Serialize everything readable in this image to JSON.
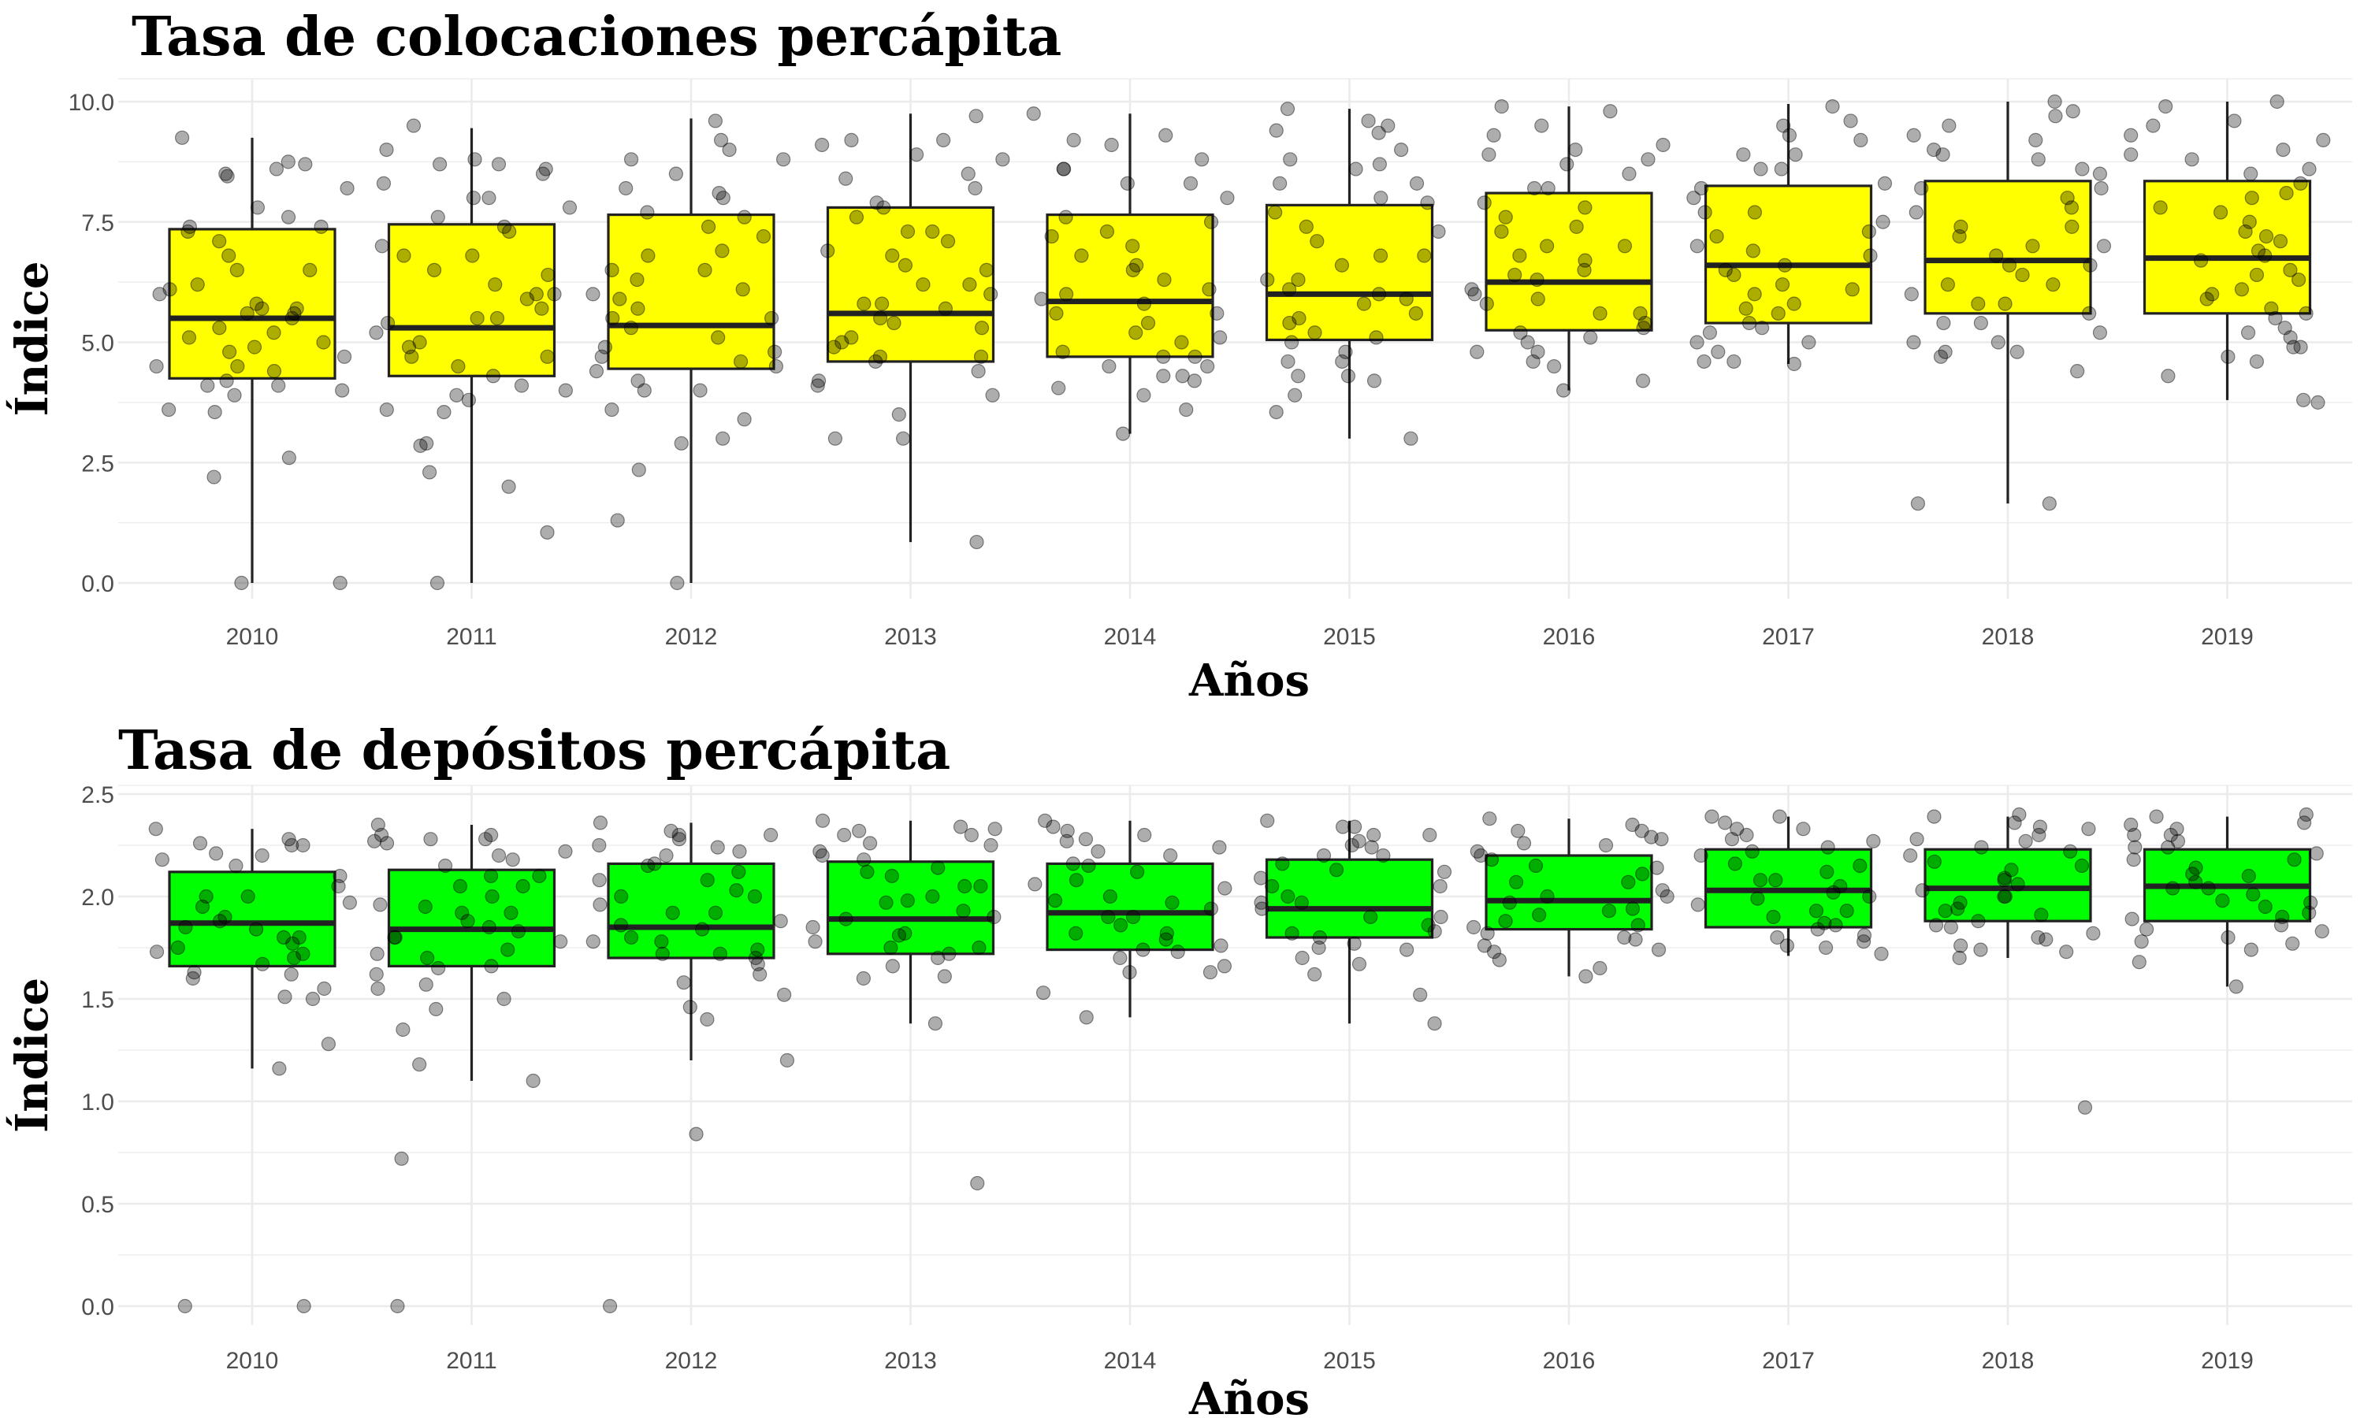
{
  "chart_data": [
    {
      "type": "boxplot",
      "title": "Tasa de colocaciones percápita",
      "xlabel": "Años",
      "ylabel": "Índice",
      "ylim": [
        0,
        10
      ],
      "y_ticks": [
        "0.0",
        "2.5",
        "5.0",
        "7.5",
        "10.0"
      ],
      "y_tick_values": [
        0,
        2.5,
        5,
        7.5,
        10
      ],
      "categories": [
        "2010",
        "2011",
        "2012",
        "2013",
        "2014",
        "2015",
        "2016",
        "2017",
        "2018",
        "2019"
      ],
      "box_color": "#ffff00",
      "point_color": "#000000",
      "point_opacity": 0.32,
      "boxes": [
        {
          "q1": 4.25,
          "median": 5.5,
          "q3": 7.35,
          "whisker_low": 0.0,
          "whisker_high": 9.25
        },
        {
          "q1": 4.3,
          "median": 5.3,
          "q3": 7.45,
          "whisker_low": 0.0,
          "whisker_high": 9.45
        },
        {
          "q1": 4.45,
          "median": 5.35,
          "q3": 7.65,
          "whisker_low": 0.0,
          "whisker_high": 9.65
        },
        {
          "q1": 4.6,
          "median": 5.6,
          "q3": 7.8,
          "whisker_low": 0.85,
          "whisker_high": 9.75
        },
        {
          "q1": 4.7,
          "median": 5.85,
          "q3": 7.65,
          "whisker_low": 3.1,
          "whisker_high": 9.75
        },
        {
          "q1": 5.05,
          "median": 6.0,
          "q3": 7.85,
          "whisker_low": 3.0,
          "whisker_high": 9.85
        },
        {
          "q1": 5.25,
          "median": 6.25,
          "q3": 8.1,
          "whisker_low": 4.0,
          "whisker_high": 9.9
        },
        {
          "q1": 5.4,
          "median": 6.6,
          "q3": 8.25,
          "whisker_low": 4.55,
          "whisker_high": 9.95
        },
        {
          "q1": 5.6,
          "median": 6.7,
          "q3": 8.35,
          "whisker_low": 1.65,
          "whisker_high": 10.0
        },
        {
          "q1": 5.6,
          "median": 6.75,
          "q3": 8.35,
          "whisker_low": 3.8,
          "whisker_high": 10.0
        }
      ],
      "points": [
        [
          8.6,
          8.2,
          7.8,
          7.6,
          7.4,
          7.1,
          6.8,
          6.5,
          6.2,
          6.0,
          5.8,
          5.7,
          5.6,
          5.5,
          5.3,
          5.2,
          5.0,
          4.9,
          4.7,
          4.5,
          4.4,
          4.2,
          4.1,
          4.0,
          3.9,
          3.6,
          3.55,
          2.6,
          2.2,
          0.0,
          0.0,
          9.25,
          8.75,
          8.7,
          8.5,
          8.45,
          7.4,
          7.3,
          6.5,
          6.1,
          5.7,
          5.6,
          5.1,
          4.8,
          4.5,
          4.1
        ],
        [
          8.7,
          8.7,
          8.5,
          8.3,
          8.0,
          7.8,
          7.6,
          7.3,
          7.0,
          6.8,
          6.5,
          6.4,
          6.2,
          6.0,
          5.9,
          5.7,
          5.5,
          5.4,
          5.2,
          5.0,
          4.9,
          4.7,
          4.5,
          4.3,
          4.1,
          3.9,
          3.8,
          3.6,
          2.9,
          2.3,
          2.0,
          1.05,
          0.0,
          9.5,
          9.0,
          8.8,
          8.6,
          8.0,
          7.4,
          6.8,
          6.0,
          5.5,
          4.7,
          4.0,
          3.55,
          2.85
        ],
        [
          9.2,
          9.0,
          8.8,
          8.5,
          8.2,
          8.0,
          7.7,
          7.4,
          7.2,
          6.8,
          6.5,
          6.3,
          6.1,
          5.9,
          5.7,
          5.5,
          5.3,
          5.1,
          4.9,
          4.7,
          4.6,
          4.4,
          4.2,
          4.0,
          3.6,
          3.4,
          3.0,
          2.9,
          2.35,
          1.3,
          0.0,
          9.6,
          8.8,
          8.1,
          7.6,
          6.9,
          6.5,
          6.0,
          5.5,
          4.8,
          4.5,
          4.0
        ],
        [
          9.2,
          9.1,
          8.9,
          8.5,
          8.2,
          7.9,
          7.6,
          7.3,
          7.1,
          6.8,
          6.5,
          6.2,
          6.0,
          5.8,
          5.7,
          5.5,
          5.3,
          5.1,
          4.9,
          4.7,
          4.6,
          4.4,
          4.1,
          3.9,
          3.5,
          3.0,
          0.85,
          9.7,
          9.2,
          8.8,
          8.4,
          7.8,
          7.3,
          6.9,
          6.6,
          6.2,
          5.8,
          5.4,
          5.0,
          4.7,
          4.2,
          3.0
        ],
        [
          9.3,
          9.1,
          8.8,
          8.6,
          8.3,
          8.0,
          7.6,
          7.3,
          7.0,
          6.6,
          6.3,
          6.1,
          5.9,
          5.8,
          5.6,
          5.4,
          5.2,
          5.0,
          4.8,
          4.7,
          4.5,
          4.3,
          4.2,
          3.9,
          3.6,
          3.1,
          9.75,
          9.2,
          8.6,
          8.3,
          7.5,
          7.2,
          6.8,
          6.5,
          6.0,
          5.6,
          5.1,
          4.7,
          4.5,
          4.3,
          4.05
        ],
        [
          9.5,
          9.0,
          8.8,
          8.6,
          8.3,
          8.0,
          7.7,
          7.4,
          7.1,
          6.8,
          6.6,
          6.3,
          6.1,
          5.9,
          5.8,
          5.6,
          5.4,
          5.2,
          5.0,
          4.8,
          4.6,
          4.3,
          4.2,
          3.9,
          3.55,
          3.0,
          9.85,
          9.6,
          9.4,
          9.35,
          8.7,
          8.3,
          7.9,
          7.3,
          6.8,
          6.3,
          6.0,
          5.5,
          5.1,
          4.6,
          4.3
        ],
        [
          9.8,
          9.3,
          9.0,
          8.8,
          8.5,
          8.2,
          7.9,
          7.6,
          7.3,
          7.0,
          6.8,
          6.5,
          6.3,
          6.1,
          6.0,
          5.8,
          5.6,
          5.4,
          5.2,
          5.0,
          4.8,
          4.6,
          4.5,
          4.2,
          4.0,
          9.9,
          9.5,
          9.1,
          8.9,
          8.7,
          8.2,
          7.8,
          7.4,
          7.0,
          6.7,
          6.4,
          5.9,
          5.6,
          5.3,
          5.1,
          4.8
        ],
        [
          9.9,
          9.5,
          9.2,
          8.9,
          8.6,
          8.3,
          8.0,
          7.7,
          7.5,
          7.3,
          7.0,
          6.8,
          6.6,
          6.4,
          6.2,
          6.0,
          5.8,
          5.6,
          5.4,
          5.2,
          5.0,
          4.8,
          4.6,
          4.55,
          9.6,
          9.3,
          8.9,
          8.6,
          8.2,
          7.7,
          7.2,
          6.9,
          6.5,
          6.1,
          5.7,
          5.3,
          5.0,
          4.6
        ],
        [
          10.0,
          9.8,
          9.5,
          9.2,
          9.0,
          8.8,
          8.5,
          8.2,
          8.0,
          7.7,
          7.4,
          7.2,
          7.0,
          6.8,
          6.6,
          6.4,
          6.2,
          6.0,
          5.8,
          5.6,
          5.4,
          5.2,
          5.0,
          4.8,
          4.7,
          4.4,
          1.65,
          9.7,
          9.3,
          8.9,
          8.6,
          8.2,
          7.8,
          7.4,
          7.0,
          6.6,
          6.2,
          5.8,
          5.4,
          5.0,
          4.8,
          1.65
        ],
        [
          10.0,
          9.9,
          9.6,
          9.3,
          9.0,
          8.8,
          8.6,
          8.3,
          8.0,
          7.8,
          7.5,
          7.3,
          7.1,
          6.9,
          6.7,
          6.5,
          6.3,
          6.1,
          5.9,
          5.7,
          5.5,
          5.3,
          5.1,
          4.9,
          4.7,
          4.3,
          3.8,
          9.5,
          9.2,
          8.9,
          8.5,
          8.1,
          7.7,
          7.2,
          6.8,
          6.4,
          6.0,
          5.6,
          5.2,
          4.9,
          4.6,
          3.75
        ]
      ]
    },
    {
      "type": "boxplot",
      "title": "Tasa de depósitos percápita",
      "xlabel": "Años",
      "ylabel": "Índice",
      "ylim": [
        -0.1,
        2.5
      ],
      "y_ticks": [
        "0.0",
        "0.5",
        "1.0",
        "1.5",
        "2.0",
        "2.5"
      ],
      "y_tick_values": [
        0,
        0.5,
        1.0,
        1.5,
        2.0,
        2.5
      ],
      "categories": [
        "2010",
        "2011",
        "2012",
        "2013",
        "2014",
        "2015",
        "2016",
        "2017",
        "2018",
        "2019"
      ],
      "box_color": "#00ff00",
      "point_color": "#000000",
      "point_opacity": 0.32,
      "boxes": [
        {
          "q1": 1.66,
          "median": 1.87,
          "q3": 2.12,
          "whisker_low": 1.16,
          "whisker_high": 2.33
        },
        {
          "q1": 1.66,
          "median": 1.84,
          "q3": 2.13,
          "whisker_low": 1.1,
          "whisker_high": 2.35
        },
        {
          "q1": 1.7,
          "median": 1.85,
          "q3": 2.16,
          "whisker_low": 1.2,
          "whisker_high": 2.36
        },
        {
          "q1": 1.72,
          "median": 1.89,
          "q3": 2.17,
          "whisker_low": 1.38,
          "whisker_high": 2.37
        },
        {
          "q1": 1.74,
          "median": 1.92,
          "q3": 2.16,
          "whisker_low": 1.41,
          "whisker_high": 2.37
        },
        {
          "q1": 1.8,
          "median": 1.94,
          "q3": 2.18,
          "whisker_low": 1.38,
          "whisker_high": 2.37
        },
        {
          "q1": 1.84,
          "median": 1.98,
          "q3": 2.2,
          "whisker_low": 1.61,
          "whisker_high": 2.38
        },
        {
          "q1": 1.85,
          "median": 2.03,
          "q3": 2.23,
          "whisker_low": 1.71,
          "whisker_high": 2.39
        },
        {
          "q1": 1.88,
          "median": 2.04,
          "q3": 2.23,
          "whisker_low": 1.7,
          "whisker_high": 2.39
        },
        {
          "q1": 1.88,
          "median": 2.05,
          "q3": 2.23,
          "whisker_low": 1.56,
          "whisker_high": 2.39
        }
      ],
      "points": [
        [
          2.33,
          2.28,
          2.26,
          2.25,
          2.21,
          2.18,
          2.15,
          2.1,
          2.05,
          2.0,
          1.95,
          1.9,
          1.88,
          1.84,
          1.8,
          1.77,
          1.73,
          1.7,
          1.67,
          1.63,
          1.62,
          1.6,
          1.55,
          1.51,
          1.5,
          1.28,
          1.16,
          0.0,
          0.0,
          2.25,
          2.2,
          2.0,
          1.97,
          1.85,
          1.8,
          1.75,
          1.72
        ],
        [
          2.35,
          2.3,
          2.28,
          2.26,
          2.22,
          2.18,
          2.15,
          2.1,
          2.05,
          2.0,
          1.96,
          1.92,
          1.88,
          1.83,
          1.8,
          1.78,
          1.74,
          1.7,
          1.66,
          1.62,
          1.57,
          1.55,
          1.5,
          1.45,
          1.35,
          1.18,
          1.1,
          0.72,
          0.0,
          2.3,
          2.28,
          2.27,
          2.2,
          2.1,
          2.05,
          1.95,
          1.92,
          1.85,
          1.8,
          1.72,
          1.65
        ],
        [
          2.36,
          2.32,
          2.3,
          2.28,
          2.24,
          2.2,
          2.16,
          2.12,
          2.08,
          2.03,
          2.0,
          1.96,
          1.92,
          1.88,
          1.84,
          1.8,
          1.78,
          1.74,
          1.72,
          1.7,
          1.67,
          1.62,
          1.58,
          1.52,
          1.46,
          1.4,
          1.2,
          0.84,
          0.0,
          2.3,
          2.25,
          2.22,
          2.15,
          2.08,
          2.0,
          1.92,
          1.86,
          1.78,
          1.72
        ],
        [
          2.37,
          2.34,
          2.32,
          2.3,
          2.26,
          2.22,
          2.18,
          2.14,
          2.1,
          2.05,
          2.0,
          1.97,
          1.93,
          1.89,
          1.85,
          1.81,
          1.78,
          1.75,
          1.72,
          1.7,
          1.66,
          1.61,
          1.6,
          1.38,
          0.6,
          2.33,
          2.3,
          2.25,
          2.2,
          2.12,
          2.05,
          1.98,
          1.9,
          1.82,
          1.75
        ],
        [
          2.37,
          2.34,
          2.3,
          2.27,
          2.24,
          2.2,
          2.16,
          2.12,
          2.08,
          2.04,
          2.0,
          1.97,
          1.94,
          1.9,
          1.86,
          1.82,
          1.79,
          1.76,
          1.73,
          1.7,
          1.66,
          1.63,
          1.53,
          1.41,
          2.32,
          2.28,
          2.22,
          2.15,
          2.06,
          1.98,
          1.9,
          1.82,
          1.74,
          1.63
        ],
        [
          2.37,
          2.34,
          2.3,
          2.27,
          2.24,
          2.2,
          2.16,
          2.13,
          2.09,
          2.05,
          2.0,
          1.97,
          1.94,
          1.9,
          1.86,
          1.83,
          1.8,
          1.77,
          1.74,
          1.7,
          1.67,
          1.62,
          1.52,
          1.38,
          2.34,
          2.3,
          2.25,
          2.2,
          2.12,
          2.05,
          1.97,
          1.9,
          1.82,
          1.75
        ],
        [
          2.38,
          2.35,
          2.32,
          2.29,
          2.26,
          2.22,
          2.18,
          2.15,
          2.11,
          2.07,
          2.03,
          2.0,
          1.97,
          1.94,
          1.91,
          1.88,
          1.85,
          1.82,
          1.79,
          1.76,
          1.73,
          1.69,
          1.65,
          1.61,
          2.32,
          2.28,
          2.25,
          2.2,
          2.14,
          2.07,
          2.0,
          1.93,
          1.86,
          1.8,
          1.74
        ],
        [
          2.39,
          2.36,
          2.33,
          2.3,
          2.27,
          2.24,
          2.2,
          2.16,
          2.12,
          2.08,
          2.05,
          2.02,
          1.99,
          1.96,
          1.93,
          1.9,
          1.87,
          1.84,
          1.81,
          1.78,
          1.75,
          1.72,
          2.39,
          2.33,
          2.28,
          2.22,
          2.15,
          2.08,
          2.0,
          1.93,
          1.86,
          1.8,
          1.76
        ],
        [
          2.39,
          2.36,
          2.33,
          2.3,
          2.27,
          2.24,
          2.2,
          2.17,
          2.13,
          2.09,
          2.06,
          2.03,
          2.0,
          1.97,
          1.94,
          1.91,
          1.88,
          1.85,
          1.82,
          1.79,
          1.76,
          1.73,
          1.7,
          0.97,
          2.4,
          2.34,
          2.28,
          2.22,
          2.15,
          2.08,
          2.0,
          1.93,
          1.86,
          1.8,
          1.74
        ],
        [
          2.39,
          2.36,
          2.33,
          2.3,
          2.27,
          2.24,
          2.21,
          2.18,
          2.14,
          2.1,
          2.07,
          2.04,
          2.01,
          1.98,
          1.95,
          1.92,
          1.89,
          1.86,
          1.83,
          1.8,
          1.77,
          1.74,
          1.68,
          1.56,
          2.4,
          2.35,
          2.3,
          2.24,
          2.18,
          2.11,
          2.04,
          1.97,
          1.9,
          1.84,
          1.78
        ]
      ]
    }
  ]
}
